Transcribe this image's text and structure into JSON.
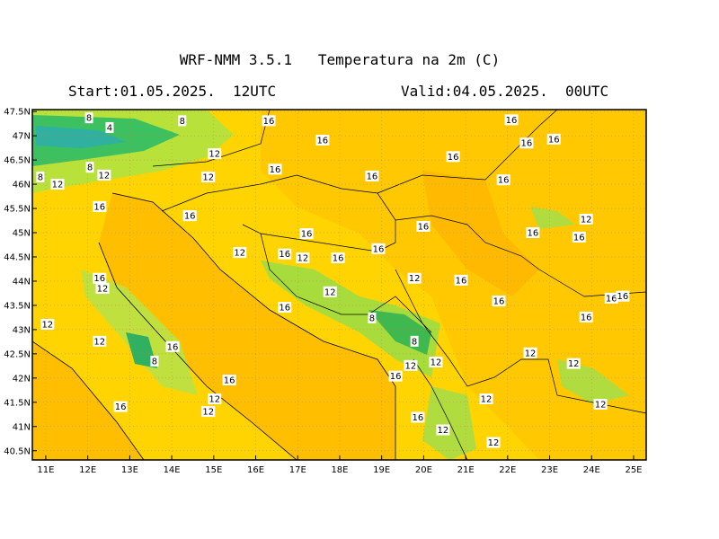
{
  "title": "WRF-NMM 3.5.1   Temperatura na 2m (C)",
  "start": "Start:01.05.2025.  12UTC",
  "valid": "Valid:04.05.2025.  00UTC",
  "chart_data": {
    "type": "map",
    "xlim": [
      10.68,
      25.3
    ],
    "ylim": [
      40.31,
      47.54
    ],
    "grid": true,
    "xticks": [
      {
        "value": 11,
        "label": "11E"
      },
      {
        "value": 12,
        "label": "12E"
      },
      {
        "value": 13,
        "label": "13E"
      },
      {
        "value": 14,
        "label": "14E"
      },
      {
        "value": 15,
        "label": "15E"
      },
      {
        "value": 16,
        "label": "16E"
      },
      {
        "value": 17,
        "label": "17E"
      },
      {
        "value": 18,
        "label": "18E"
      },
      {
        "value": 19,
        "label": "19E"
      },
      {
        "value": 20,
        "label": "20E"
      },
      {
        "value": 21,
        "label": "21E"
      },
      {
        "value": 22,
        "label": "22E"
      },
      {
        "value": 23,
        "label": "23E"
      },
      {
        "value": 24,
        "label": "24E"
      },
      {
        "value": 25,
        "label": "25E"
      }
    ],
    "yticks": [
      {
        "value": 40.5,
        "label": "40.5N"
      },
      {
        "value": 41,
        "label": "41N"
      },
      {
        "value": 41.5,
        "label": "41.5N"
      },
      {
        "value": 42,
        "label": "42N"
      },
      {
        "value": 42.5,
        "label": "42.5N"
      },
      {
        "value": 43,
        "label": "43N"
      },
      {
        "value": 43.5,
        "label": "43.5N"
      },
      {
        "value": 44,
        "label": "44N"
      },
      {
        "value": 44.5,
        "label": "44.5N"
      },
      {
        "value": 45,
        "label": "45N"
      },
      {
        "value": 45.5,
        "label": "45.5N"
      },
      {
        "value": 46,
        "label": "46N"
      },
      {
        "value": 46.5,
        "label": "46.5N"
      },
      {
        "value": 47,
        "label": "47N"
      },
      {
        "value": 47.5,
        "label": "47.5N"
      }
    ],
    "contour_labels": [
      {
        "lon": 12.03,
        "lat": 47.37,
        "label": 8
      },
      {
        "lon": 14.25,
        "lat": 47.31,
        "label": 8
      },
      {
        "lon": 12.52,
        "lat": 47.17,
        "label": 4
      },
      {
        "lon": 16.31,
        "lat": 47.31,
        "label": 16
      },
      {
        "lon": 17.59,
        "lat": 46.91,
        "label": 16
      },
      {
        "lon": 15.02,
        "lat": 46.63,
        "label": 12
      },
      {
        "lon": 12.05,
        "lat": 46.35,
        "label": 8
      },
      {
        "lon": 12.39,
        "lat": 46.19,
        "label": 12
      },
      {
        "lon": 10.87,
        "lat": 46.15,
        "label": 8
      },
      {
        "lon": 11.28,
        "lat": 46.0,
        "label": 12
      },
      {
        "lon": 14.87,
        "lat": 46.15,
        "label": 12
      },
      {
        "lon": 16.46,
        "lat": 46.31,
        "label": 16
      },
      {
        "lon": 18.77,
        "lat": 46.17,
        "label": 16
      },
      {
        "lon": 20.7,
        "lat": 46.57,
        "label": 16
      },
      {
        "lon": 22.09,
        "lat": 47.33,
        "label": 16
      },
      {
        "lon": 22.45,
        "lat": 46.85,
        "label": 16
      },
      {
        "lon": 23.1,
        "lat": 46.93,
        "label": 16
      },
      {
        "lon": 21.9,
        "lat": 46.09,
        "label": 16
      },
      {
        "lon": 12.28,
        "lat": 45.54,
        "label": 16
      },
      {
        "lon": 14.43,
        "lat": 45.35,
        "label": 16
      },
      {
        "lon": 23.87,
        "lat": 45.28,
        "label": 12
      },
      {
        "lon": 22.6,
        "lat": 45.0,
        "label": 16
      },
      {
        "lon": 23.7,
        "lat": 44.91,
        "label": 16
      },
      {
        "lon": 19.99,
        "lat": 45.13,
        "label": 16
      },
      {
        "lon": 17.21,
        "lat": 44.98,
        "label": 16
      },
      {
        "lon": 18.92,
        "lat": 44.67,
        "label": 16
      },
      {
        "lon": 15.62,
        "lat": 44.59,
        "label": 12
      },
      {
        "lon": 16.69,
        "lat": 44.56,
        "label": 16
      },
      {
        "lon": 17.12,
        "lat": 44.48,
        "label": 12
      },
      {
        "lon": 17.96,
        "lat": 44.48,
        "label": 16
      },
      {
        "lon": 19.78,
        "lat": 44.06,
        "label": 12
      },
      {
        "lon": 20.89,
        "lat": 44.02,
        "label": 16
      },
      {
        "lon": 12.28,
        "lat": 44.06,
        "label": 16
      },
      {
        "lon": 12.35,
        "lat": 43.85,
        "label": 12
      },
      {
        "lon": 17.77,
        "lat": 43.78,
        "label": 12
      },
      {
        "lon": 21.79,
        "lat": 43.59,
        "label": 16
      },
      {
        "lon": 24.47,
        "lat": 43.65,
        "label": 16
      },
      {
        "lon": 24.74,
        "lat": 43.69,
        "label": 16
      },
      {
        "lon": 16.69,
        "lat": 43.46,
        "label": 16
      },
      {
        "lon": 18.77,
        "lat": 43.24,
        "label": 8
      },
      {
        "lon": 11.04,
        "lat": 43.11,
        "label": 12
      },
      {
        "lon": 23.87,
        "lat": 43.26,
        "label": 16
      },
      {
        "lon": 12.28,
        "lat": 42.76,
        "label": 12
      },
      {
        "lon": 14.02,
        "lat": 42.65,
        "label": 16
      },
      {
        "lon": 13.59,
        "lat": 42.35,
        "label": 8
      },
      {
        "lon": 19.78,
        "lat": 42.76,
        "label": 8
      },
      {
        "lon": 22.54,
        "lat": 42.52,
        "label": 12
      },
      {
        "lon": 19.69,
        "lat": 42.26,
        "label": 12
      },
      {
        "lon": 20.29,
        "lat": 42.33,
        "label": 12
      },
      {
        "lon": 23.57,
        "lat": 42.3,
        "label": 12
      },
      {
        "lon": 15.37,
        "lat": 41.96,
        "label": 16
      },
      {
        "lon": 19.33,
        "lat": 42.04,
        "label": 16
      },
      {
        "lon": 15.02,
        "lat": 41.57,
        "label": 12
      },
      {
        "lon": 14.87,
        "lat": 41.31,
        "label": 12
      },
      {
        "lon": 12.78,
        "lat": 41.41,
        "label": 16
      },
      {
        "lon": 21.49,
        "lat": 41.57,
        "label": 12
      },
      {
        "lon": 24.21,
        "lat": 41.46,
        "label": 12
      },
      {
        "lon": 19.86,
        "lat": 41.19,
        "label": 16
      },
      {
        "lon": 20.46,
        "lat": 40.93,
        "label": 12
      },
      {
        "lon": 21.66,
        "lat": 40.67,
        "label": 12
      }
    ]
  }
}
